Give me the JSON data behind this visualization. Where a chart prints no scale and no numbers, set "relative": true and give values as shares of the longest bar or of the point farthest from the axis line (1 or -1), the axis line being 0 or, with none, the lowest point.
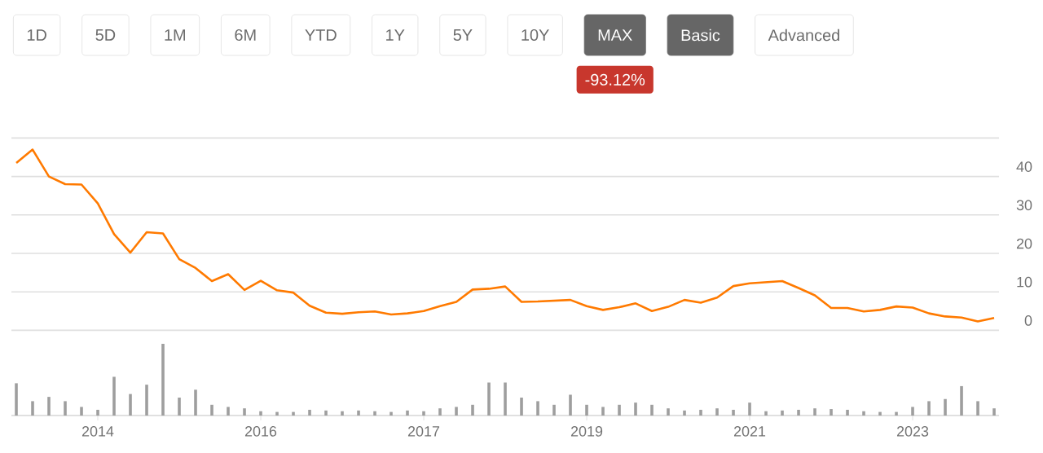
{
  "chart_data": [
    {
      "type": "line",
      "annotations": [
        "1D",
        "5D",
        "1M",
        "6M",
        "YTD",
        "1Y",
        "5Y",
        "10Y",
        "MAX",
        "Basic",
        "Advanced",
        "-93.12%"
      ],
      "categories": [
        null,
        null,
        null,
        null,
        null,
        null,
        null,
        null,
        null,
        null,
        null,
        null,
        null,
        null,
        null,
        null,
        null,
        null,
        null,
        null,
        null,
        null,
        null,
        null,
        null,
        null,
        null,
        null,
        null,
        null,
        null,
        null,
        null,
        null,
        null,
        null,
        null,
        null,
        null,
        null,
        null,
        null,
        null,
        null,
        null,
        null,
        null,
        null,
        null,
        null,
        null,
        null,
        null,
        null,
        null,
        null,
        null,
        null,
        null,
        null,
        null
      ],
      "values": [
        43.5,
        47,
        40,
        38,
        37.9,
        33,
        25,
        20.2,
        25.5,
        25.2,
        18.5,
        16.2,
        12.8,
        14.6,
        10.5,
        12.9,
        10.4,
        9.8,
        6.4,
        4.6,
        4.3,
        4.7,
        4.9,
        4.1,
        4.4,
        5,
        6.3,
        7.4,
        10.6,
        10.8,
        11.4,
        7.4,
        7.5,
        7.7,
        7.9,
        6.3,
        5.3,
        6,
        7,
        5,
        6.1,
        7.9,
        7.2,
        8.5,
        11.5,
        12.2,
        12.5,
        12.8,
        11,
        9.1,
        5.8,
        5.8,
        4.9,
        5.3,
        6.2,
        5.9,
        4.4,
        3.6,
        3.3,
        2.3,
        3.2
      ],
      "color": "#ff7a00",
      "ylim": [
        0,
        50
      ],
      "yticks": [
        0,
        10,
        20,
        30,
        40,
        {
          "value": 50,
          "label": null
        }
      ],
      "grid": "y",
      "tick_labels": "y"
    },
    {
      "type": "bar",
      "relative": true,
      "color": "#9e9e9e",
      "categories": [
        null,
        null,
        null,
        null,
        null,
        "2014",
        null,
        null,
        null,
        null,
        null,
        null,
        null,
        null,
        null,
        "2016",
        null,
        null,
        null,
        null,
        null,
        null,
        null,
        null,
        null,
        "2017",
        null,
        null,
        null,
        null,
        null,
        null,
        null,
        null,
        null,
        "2019",
        null,
        null,
        null,
        null,
        null,
        null,
        null,
        null,
        null,
        "2021",
        null,
        null,
        null,
        null,
        null,
        null,
        null,
        null,
        null,
        "2023",
        null,
        null,
        null,
        null,
        null
      ],
      "values": [
        0.45,
        0.2,
        0.26,
        0.2,
        0.12,
        0.08,
        0.54,
        0.3,
        0.43,
        1.0,
        0.25,
        0.36,
        0.15,
        0.12,
        0.1,
        0.06,
        0.05,
        0.05,
        0.08,
        0.07,
        0.06,
        0.07,
        0.06,
        0.05,
        0.07,
        0.06,
        0.1,
        0.12,
        0.15,
        0.46,
        0.46,
        0.25,
        0.2,
        0.15,
        0.29,
        0.15,
        0.12,
        0.15,
        0.18,
        0.15,
        0.1,
        0.07,
        0.08,
        0.1,
        0.08,
        0.18,
        0.06,
        0.07,
        0.08,
        0.1,
        0.09,
        0.08,
        0.06,
        0.05,
        0.05,
        0.12,
        0.2,
        0.23,
        0.41,
        0.2,
        0.1
      ],
      "tick_labels": "x"
    }
  ]
}
